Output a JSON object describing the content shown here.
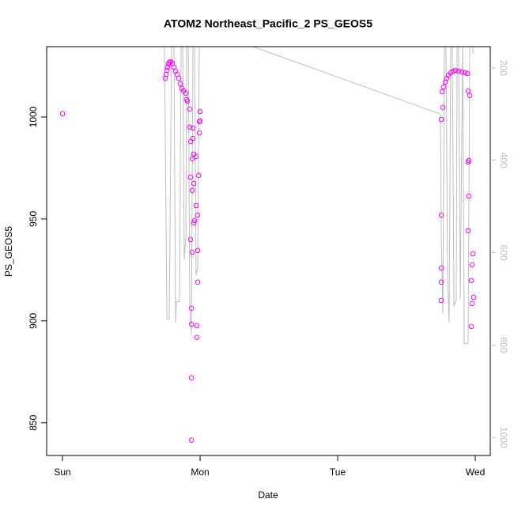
{
  "chart_data": {
    "type": "scatter",
    "title": "ATOM2 Northeast_Pacific_2 PS_GEOS5",
    "x_label": "Date",
    "y_label": "PS_GEOS5",
    "xlim": [
      -0.115,
      3.109
    ],
    "xticks": [
      {
        "value": 0,
        "label": "Sun"
      },
      {
        "value": 1,
        "label": "Mon"
      },
      {
        "value": 2,
        "label": "Tue"
      },
      {
        "value": 3,
        "label": "Wed"
      }
    ],
    "ylim": [
      834,
      1034.5
    ],
    "yticks": [
      850,
      900,
      950,
      1000
    ],
    "y2lim": [
      1039,
      154
    ],
    "y2ticks": [
      200,
      400,
      600,
      800,
      1000
    ],
    "series": [
      {
        "type": "line",
        "axis": "y2",
        "color": "#bebebe",
        "x": [
          0.741,
          0.759,
          0.776,
          0.793,
          0.81,
          0.822,
          0.828,
          0.851,
          0.862,
          0.874,
          0.885,
          0.897,
          0.902,
          0.914,
          0.925,
          0.937,
          0.948,
          0.96,
          0.971,
          0.983,
          0.994,
          1.006,
          1.385,
          2.747,
          2.753,
          2.764,
          2.776,
          2.787,
          2.799,
          2.81,
          2.822,
          2.833,
          2.845,
          2.862,
          2.868,
          2.879,
          2.891,
          2.908,
          2.92,
          2.948,
          2.96,
          2.977,
          2.989
        ],
        "values": [
          154,
          743,
          743,
          154,
          154,
          751,
          706,
          706,
          154,
          154,
          615,
          564,
          154,
          154,
          717,
          777,
          154,
          154,
          649,
          632,
          154,
          154,
          154,
          300,
          564,
          731,
          154,
          154,
          658,
          751,
          154,
          154,
          717,
          700,
          154,
          154,
          700,
          154,
          797,
          797,
          154,
          154,
          169
        ]
      },
      {
        "type": "scatter",
        "color": "#ff00ff",
        "x": [
          0,
          0.747,
          0.753,
          0.759,
          0.764,
          0.77,
          0.776,
          0.787,
          0.799,
          0.81,
          0.822,
          0.833,
          0.845,
          0.856,
          0.868,
          0.879,
          0.897,
          0.902,
          0.908,
          0.925,
          1.0,
          0.994,
          1.0,
          0.925,
          0.948,
          0.994,
          0.948,
          0.931,
          0.954,
          0.971,
          0.943,
          0.989,
          0.931,
          0.954,
          0.943,
          0.971,
          0.983,
          0.96,
          0.954,
          0.931,
          0.983,
          0.943,
          0.983,
          0.937,
          0.937,
          0.977,
          0.977,
          0.937,
          0.937,
          2.753,
          2.764,
          2.759,
          2.77,
          2.782,
          2.793,
          2.805,
          2.822,
          2.839,
          2.856,
          2.879,
          2.902,
          2.925,
          2.943,
          2.948,
          2.96,
          2.954,
          2.948,
          2.954,
          2.948,
          2.983,
          2.977,
          2.971,
          2.989,
          2.977,
          2.971,
          2.753,
          2.753,
          2.753,
          2.753
        ],
        "values": [
          1001.6,
          1019,
          1020.9,
          1022.9,
          1024.4,
          1026,
          1026.7,
          1027.1,
          1026.4,
          1024.4,
          1022.5,
          1020.9,
          1019,
          1016.3,
          1014,
          1012.8,
          1011.6,
          1008.5,
          1007.8,
          1003.9,
          1002.7,
          997.7,
          998.1,
          995,
          994.6,
          992.2,
          989.5,
          988,
          981.8,
          980.6,
          979.5,
          971.3,
          970.5,
          967.4,
          964,
          956.6,
          951.9,
          949.2,
          948.1,
          939.9,
          934.5,
          933.7,
          919,
          906.2,
          898.4,
          897.7,
          891.9,
          872.1,
          841.5,
          998.8,
          1004.7,
          1012.4,
          1014.7,
          1017.1,
          1019,
          1020.5,
          1021.7,
          1022.5,
          1022.9,
          1022.5,
          1022.1,
          1021.7,
          1021.3,
          1012.8,
          1010.5,
          978.7,
          977.9,
          961.2,
          944.2,
          932.9,
          927.5,
          919.8,
          911.6,
          908.5,
          897.3,
          951.9,
          926,
          919,
          910
        ]
      }
    ]
  }
}
